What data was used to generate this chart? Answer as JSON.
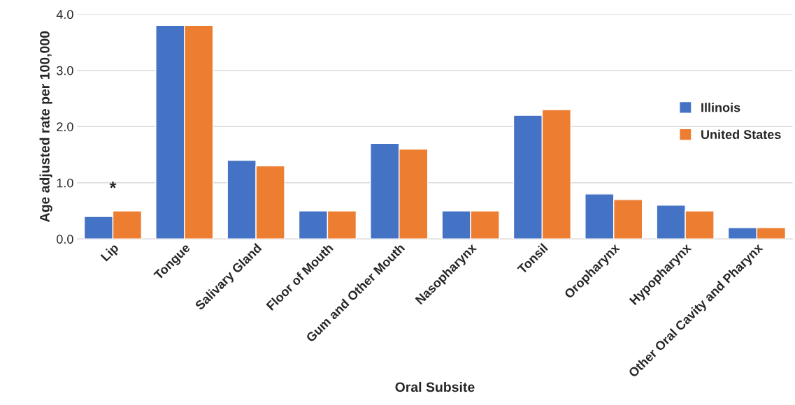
{
  "chart_data": {
    "type": "bar",
    "xlabel": "Oral Subsite",
    "ylabel": "Age adjusted rate per 100,000",
    "categories": [
      "Lip",
      "Tongue",
      "Salivary Gland",
      "Floor of Mouth",
      "Gum and Other Mouth",
      "Nasopharynx",
      "Tonsil",
      "Oropharynx",
      "Hypopharynx",
      "Other Oral Cavity and Pharynx"
    ],
    "series": [
      {
        "name": "Illinois",
        "color": "#4472c4",
        "values": [
          0.4,
          3.8,
          1.4,
          0.5,
          1.7,
          0.5,
          2.2,
          0.8,
          0.6,
          0.2
        ]
      },
      {
        "name": "United States",
        "color": "#ed7d31",
        "values": [
          0.5,
          3.8,
          1.3,
          0.5,
          1.6,
          0.5,
          2.3,
          0.7,
          0.5,
          0.2
        ]
      }
    ],
    "ylim": [
      0,
      4
    ],
    "yticks": [
      {
        "value": 0,
        "label": "0.0"
      },
      {
        "value": 1,
        "label": "1.0"
      },
      {
        "value": 2,
        "label": "2.0"
      },
      {
        "value": 3,
        "label": "3.0"
      },
      {
        "value": 4,
        "label": "4.0"
      }
    ],
    "annotations": [
      "*"
    ],
    "grid": "y",
    "legend": "right"
  }
}
